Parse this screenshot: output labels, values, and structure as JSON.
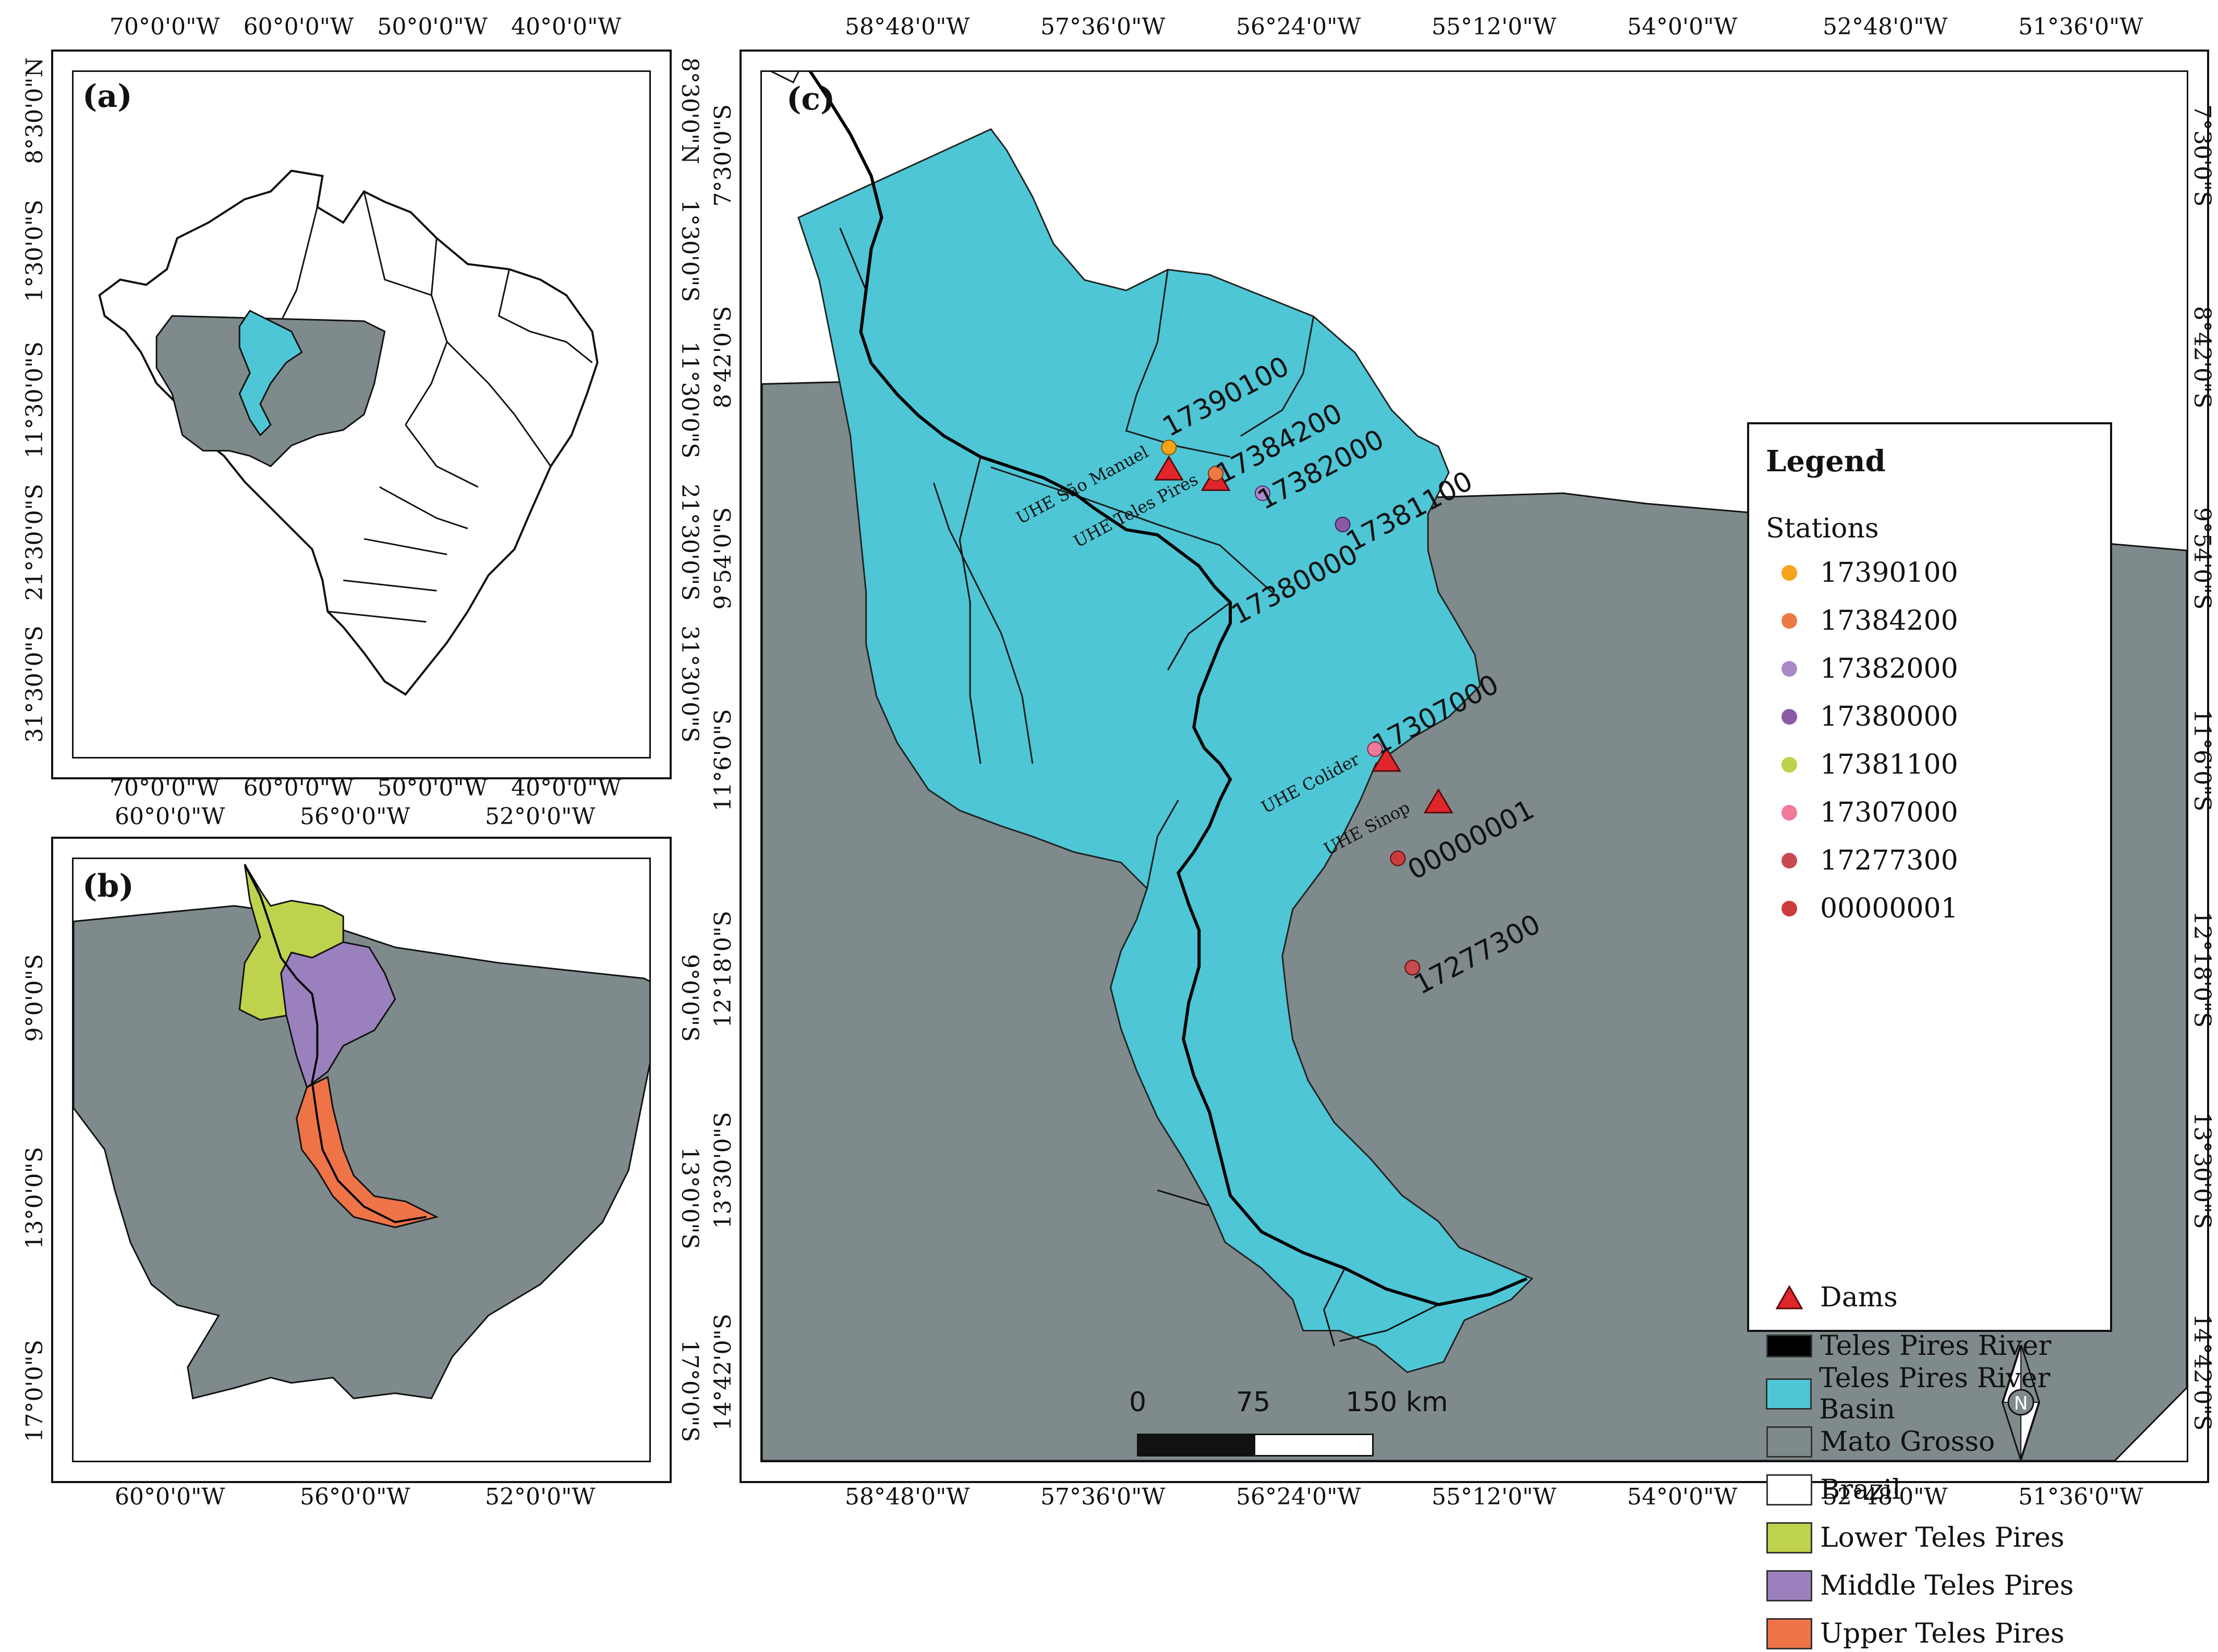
{
  "panels": {
    "a": {
      "label": "(a)",
      "top_ticks": [
        "70°0'0\"W",
        "60°0'0\"W",
        "50°0'0\"W",
        "40°0'0\"W"
      ],
      "bottom_ticks": [
        "70°0'0\"W",
        "60°0'0\"W",
        "50°0'0\"W",
        "40°0'0\"W"
      ],
      "left_ticks": [
        "8°30'0\"N",
        "1°30'0\"S",
        "11°30'0\"S",
        "21°30'0\"S",
        "31°30'0\"S"
      ],
      "right_ticks": [
        "8°30'0\"N",
        "1°30'0\"S",
        "11°30'0\"S",
        "21°30'0\"S",
        "31°30'0\"S"
      ]
    },
    "b": {
      "label": "(b)",
      "top_ticks": [
        "60°0'0\"W",
        "56°0'0\"W",
        "52°0'0\"W"
      ],
      "bottom_ticks": [
        "60°0'0\"W",
        "56°0'0\"W",
        "52°0'0\"W"
      ],
      "left_ticks": [
        "9°0'0\"S",
        "13°0'0\"S",
        "17°0'0\"S"
      ],
      "right_ticks": [
        "9°0'0\"S",
        "13°0'0\"S",
        "17°0'0\"S"
      ]
    },
    "c": {
      "label": "(c)",
      "top_ticks": [
        "58°48'0\"W",
        "57°36'0\"W",
        "56°24'0\"W",
        "55°12'0\"W",
        "54°0'0\"W",
        "52°48'0\"W",
        "51°36'0\"W"
      ],
      "bottom_ticks": [
        "58°48'0\"W",
        "57°36'0\"W",
        "56°24'0\"W",
        "55°12'0\"W",
        "54°0'0\"W",
        "52°48'0\"W",
        "51°36'0\"W"
      ],
      "left_ticks": [
        "7°30'0\"S",
        "8°42'0\"S",
        "9°54'0\"S",
        "11°6'0\"S",
        "12°18'0\"S",
        "13°30'0\"S",
        "14°42'0\"S"
      ],
      "right_ticks": [
        "7°30'0\"S",
        "8°42'0\"S",
        "9°54'0\"S",
        "11°6'0\"S",
        "12°18'0\"S",
        "13°30'0\"S",
        "14°42'0\"S"
      ]
    }
  },
  "stations": [
    {
      "id": "17390100",
      "color": "#f5a31a"
    },
    {
      "id": "17384200",
      "color": "#ee7a43"
    },
    {
      "id": "17382000",
      "color": "#a98ac9"
    },
    {
      "id": "17380000",
      "color": "#8a5aa6"
    },
    {
      "id": "17381100",
      "color": "#bcd24a"
    },
    {
      "id": "17307000",
      "color": "#f07a9a"
    },
    {
      "id": "17277300",
      "color": "#c84a50"
    },
    {
      "id": "00000001",
      "color": "#cc3b3b"
    }
  ],
  "dams": [
    {
      "name": "UHE São Manuel"
    },
    {
      "name": "UHE Teles Pires"
    },
    {
      "name": "UHE Colider"
    },
    {
      "name": "UHE Sinop"
    }
  ],
  "legend": {
    "title": "Legend",
    "stations_heading": "Stations",
    "dams_label": "Dams",
    "layers": [
      {
        "label": "Teles Pires River",
        "color": "#000000"
      },
      {
        "label": "Teles Pires River Basin",
        "color": "#4ec6d6"
      },
      {
        "label": "Mato Grosso",
        "color": "#7f8a8c"
      },
      {
        "label": "Brazil",
        "color": "#ffffff"
      },
      {
        "label": "Lower Teles Pires",
        "color": "#bfd24d"
      },
      {
        "label": "Middle Teles Pires",
        "color": "#9b80be"
      },
      {
        "label": "Upper Teles Pires",
        "color": "#ee7447"
      }
    ]
  },
  "scale_bar": {
    "labels": [
      "0",
      "75",
      "150 km"
    ]
  },
  "north_arrow": {
    "label": "N"
  },
  "colors": {
    "basin": "#4ec6d6",
    "mato_grosso": "#7f8a8c",
    "dam": "#e0262b"
  }
}
